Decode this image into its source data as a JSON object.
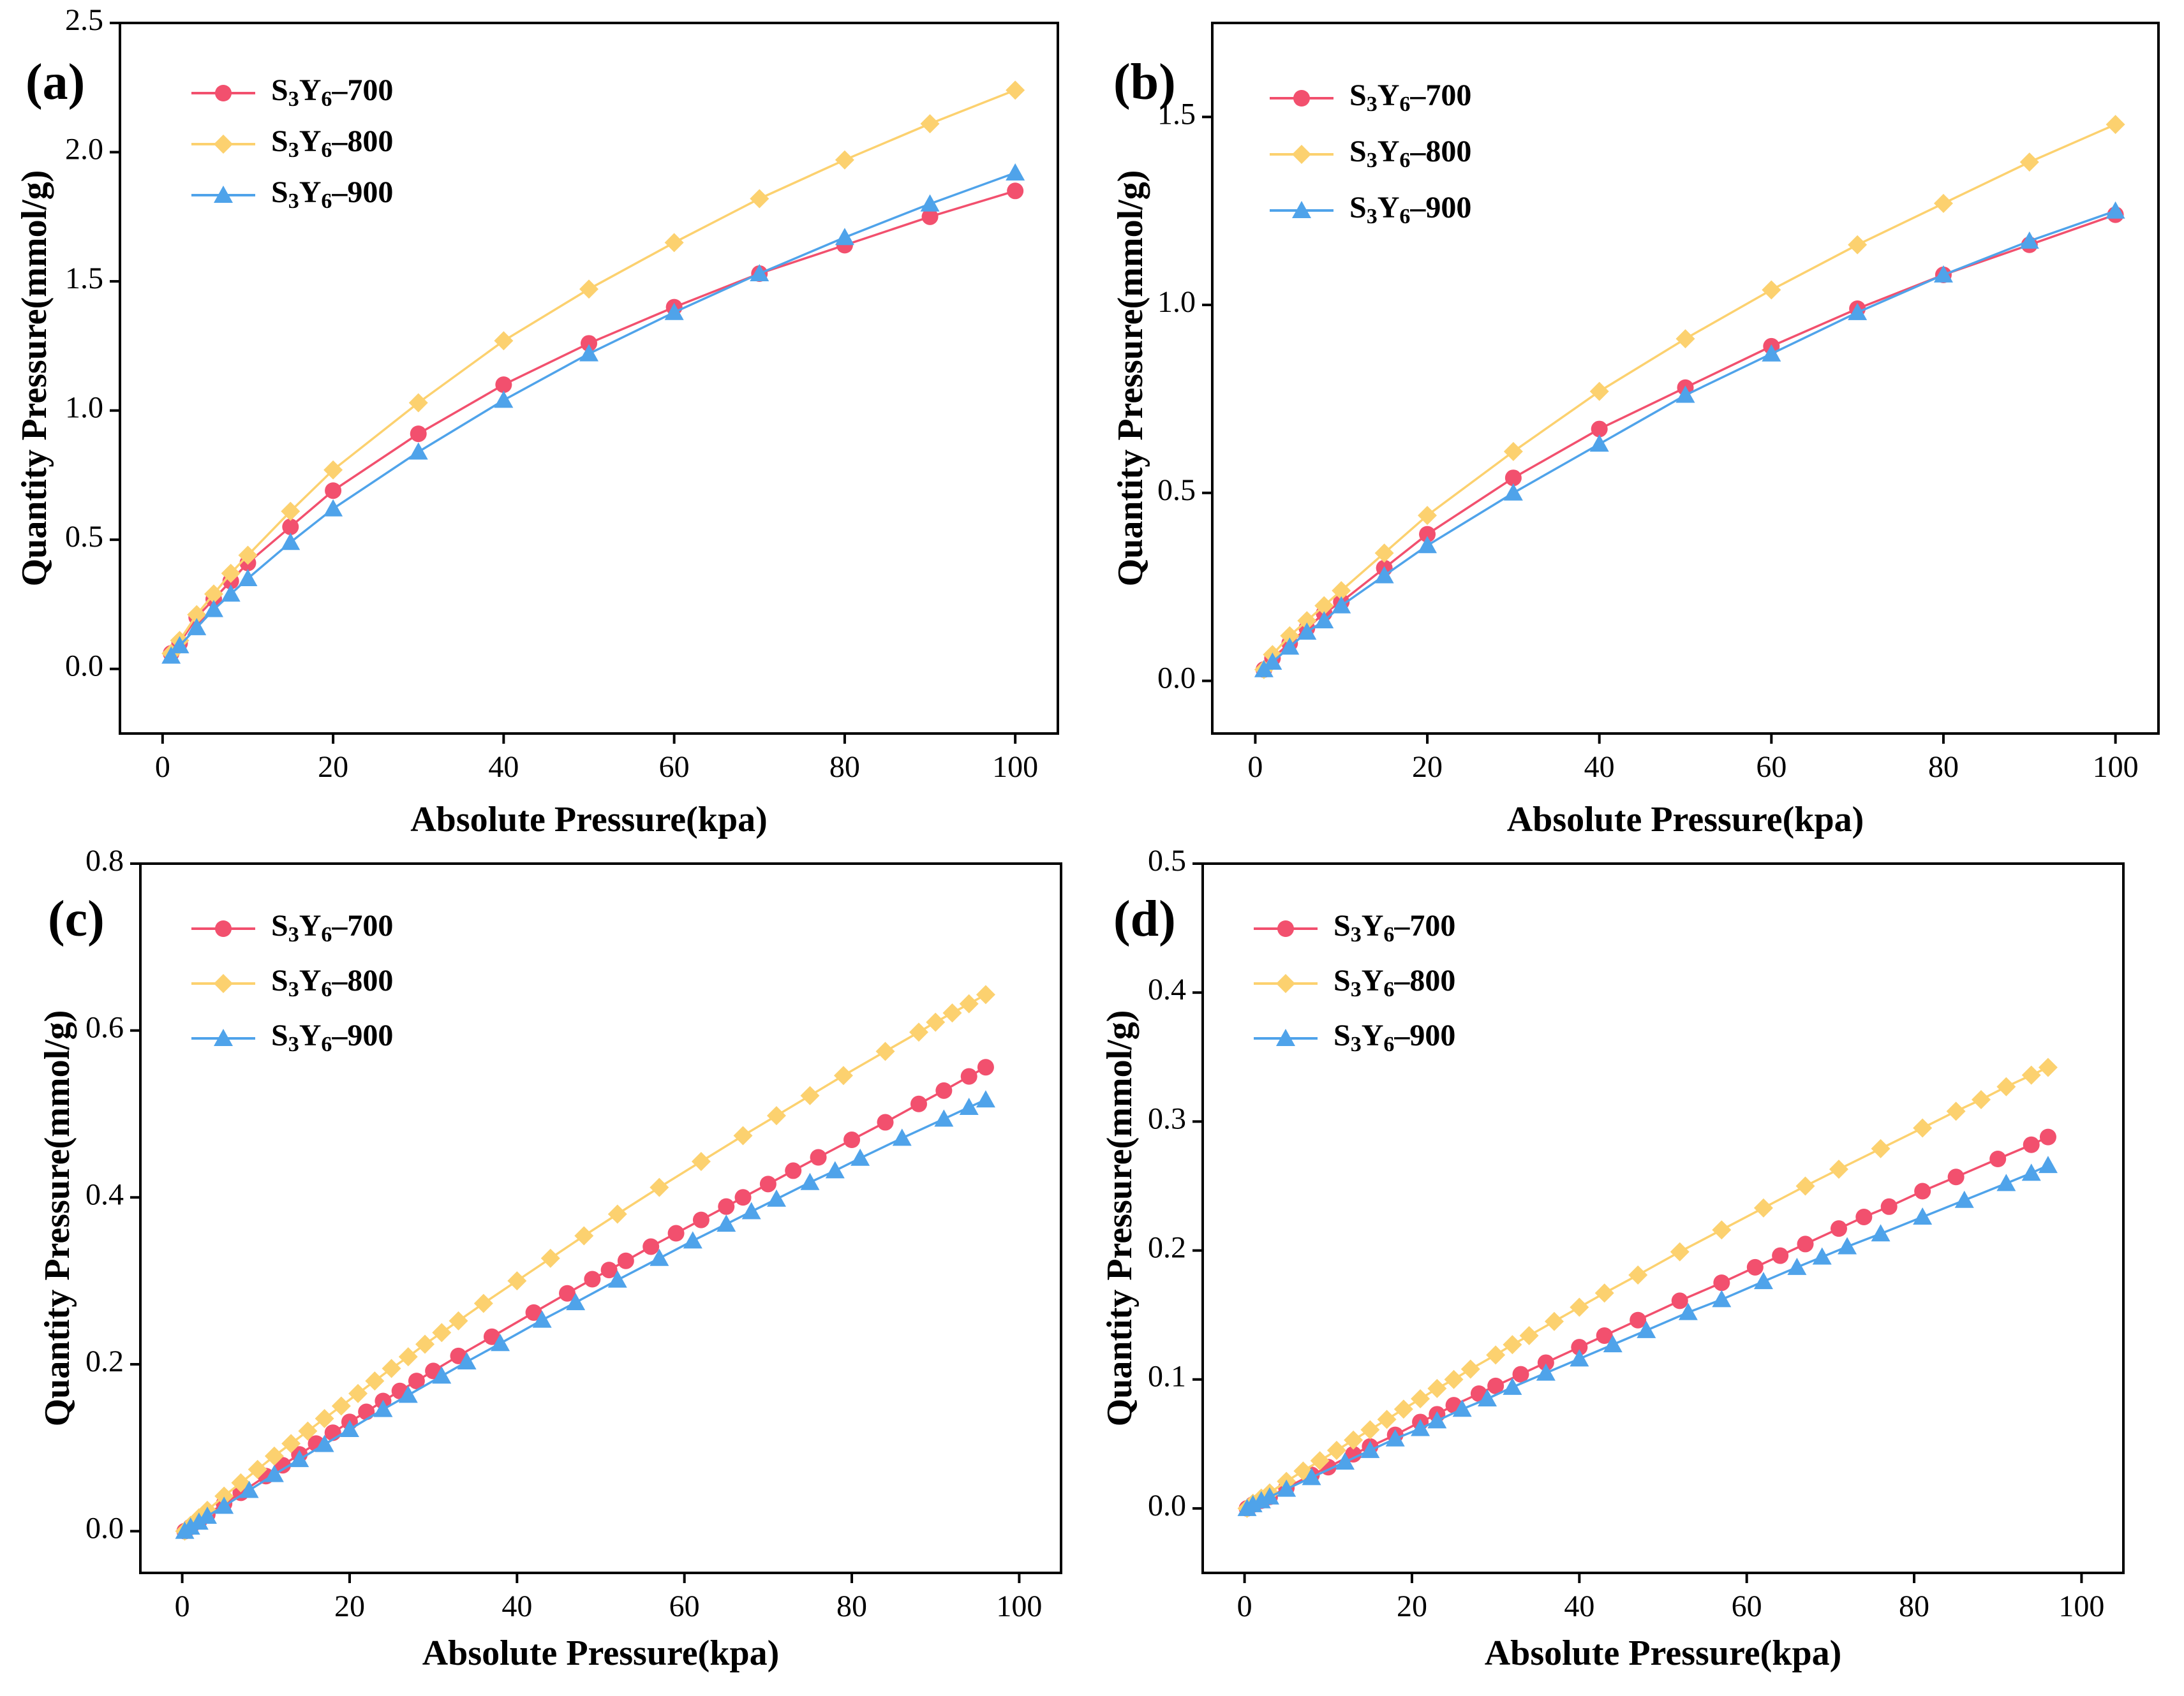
{
  "colors": {
    "S3Y6-700": "#F2506E",
    "S3Y6-800": "#FCD16F",
    "S3Y6-900": "#4FA3EA"
  },
  "chart_data": [
    {
      "label": "(a)",
      "type": "line",
      "xlabel": "Absolute Pressure(kpa)",
      "ylabel": "Quantity Pressure(mmol/g)",
      "xlim": [
        -5,
        105
      ],
      "ylim": [
        -0.25,
        2.5
      ],
      "xticks": [
        0,
        20,
        40,
        60,
        80,
        100
      ],
      "yticks": [
        0.0,
        0.5,
        1.0,
        1.5,
        2.0,
        2.5
      ],
      "xtick_labels": [
        "0",
        "20",
        "40",
        "60",
        "80",
        "100"
      ],
      "ytick_labels": [
        "0.0",
        "0.5",
        "1.0",
        "1.5",
        "2.0",
        "2.5"
      ],
      "legend_position": "top-left",
      "series": [
        {
          "name": "S3Y6-700",
          "legend": {
            "base": "S",
            "sub1": "3",
            "mid": "Y",
            "sub2": "6",
            "suffix": "–700"
          },
          "marker": "circle",
          "x": [
            1,
            2,
            4,
            6,
            8,
            10,
            15,
            20,
            30,
            40,
            50,
            60,
            70,
            80,
            90,
            100
          ],
          "y": [
            0.06,
            0.1,
            0.2,
            0.27,
            0.34,
            0.41,
            0.55,
            0.69,
            0.91,
            1.1,
            1.26,
            1.4,
            1.53,
            1.64,
            1.75,
            1.85
          ]
        },
        {
          "name": "S3Y6-800",
          "legend": {
            "base": "S",
            "sub1": "3",
            "mid": "Y",
            "sub2": "6",
            "suffix": "–800"
          },
          "marker": "diamond",
          "x": [
            1,
            2,
            4,
            6,
            8,
            10,
            15,
            20,
            30,
            40,
            50,
            60,
            70,
            80,
            90,
            100
          ],
          "y": [
            0.06,
            0.11,
            0.21,
            0.29,
            0.37,
            0.44,
            0.61,
            0.77,
            1.03,
            1.27,
            1.47,
            1.65,
            1.82,
            1.97,
            2.11,
            2.24
          ]
        },
        {
          "name": "S3Y6-900",
          "legend": {
            "base": "S",
            "sub1": "3",
            "mid": "Y",
            "sub2": "6",
            "suffix": "–900"
          },
          "marker": "triangle",
          "x": [
            1,
            2,
            4,
            6,
            8,
            10,
            15,
            20,
            30,
            40,
            50,
            60,
            70,
            80,
            90,
            100
          ],
          "y": [
            0.05,
            0.09,
            0.16,
            0.23,
            0.29,
            0.35,
            0.49,
            0.62,
            0.84,
            1.04,
            1.22,
            1.38,
            1.53,
            1.67,
            1.8,
            1.92
          ]
        }
      ]
    },
    {
      "label": "(b)",
      "type": "line",
      "xlabel": "Absolute Pressure(kpa)",
      "ylabel": "Quantity Pressure(mmol/g)",
      "xlim": [
        -5,
        105
      ],
      "ylim": [
        -0.14,
        1.75
      ],
      "xticks": [
        0,
        20,
        40,
        60,
        80,
        100
      ],
      "yticks": [
        0.0,
        0.5,
        1.0,
        1.5
      ],
      "xtick_labels": [
        "0",
        "20",
        "40",
        "60",
        "80",
        "100"
      ],
      "ytick_labels": [
        "0.0",
        "0.5",
        "1.0",
        "1.5"
      ],
      "legend_position": "top-left",
      "series": [
        {
          "name": "S3Y6-700",
          "legend": {
            "base": "S",
            "sub1": "3",
            "mid": "Y",
            "sub2": "6",
            "suffix": "–700"
          },
          "marker": "circle",
          "x": [
            1,
            2,
            4,
            6,
            8,
            10,
            15,
            20,
            30,
            40,
            50,
            60,
            70,
            80,
            90,
            100
          ],
          "y": [
            0.03,
            0.06,
            0.1,
            0.14,
            0.18,
            0.21,
            0.3,
            0.39,
            0.54,
            0.67,
            0.78,
            0.89,
            0.99,
            1.08,
            1.16,
            1.24
          ]
        },
        {
          "name": "S3Y6-800",
          "legend": {
            "base": "S",
            "sub1": "3",
            "mid": "Y",
            "sub2": "6",
            "suffix": "–800"
          },
          "marker": "diamond",
          "x": [
            1,
            2,
            4,
            6,
            8,
            10,
            15,
            20,
            30,
            40,
            50,
            60,
            70,
            80,
            90,
            100
          ],
          "y": [
            0.03,
            0.07,
            0.12,
            0.16,
            0.2,
            0.24,
            0.34,
            0.44,
            0.61,
            0.77,
            0.91,
            1.04,
            1.16,
            1.27,
            1.38,
            1.48
          ]
        },
        {
          "name": "S3Y6-900",
          "legend": {
            "base": "S",
            "sub1": "3",
            "mid": "Y",
            "sub2": "6",
            "suffix": "–900"
          },
          "marker": "triangle",
          "x": [
            1,
            2,
            4,
            6,
            8,
            10,
            15,
            20,
            30,
            40,
            50,
            60,
            70,
            80,
            90,
            100
          ],
          "y": [
            0.03,
            0.05,
            0.09,
            0.13,
            0.16,
            0.2,
            0.28,
            0.36,
            0.5,
            0.63,
            0.76,
            0.87,
            0.98,
            1.08,
            1.17,
            1.25
          ]
        }
      ]
    },
    {
      "label": "(c)",
      "type": "line",
      "xlabel": "Absolute Pressure(kpa)",
      "ylabel": "Quantity Pressure(mmol/g)",
      "xlim": [
        -5,
        105
      ],
      "ylim": [
        -0.05,
        0.8
      ],
      "xticks": [
        0,
        20,
        40,
        60,
        80,
        100
      ],
      "yticks": [
        0.0,
        0.2,
        0.4,
        0.6,
        0.8
      ],
      "xtick_labels": [
        "0",
        "20",
        "40",
        "60",
        "80",
        "100"
      ],
      "ytick_labels": [
        "0.0",
        "0.2",
        "0.4",
        "0.6",
        "0.8"
      ],
      "legend_position": "top-left",
      "series": [
        {
          "name": "S3Y6-700",
          "legend": {
            "base": "S",
            "sub1": "3",
            "mid": "Y",
            "sub2": "6",
            "suffix": "–700"
          },
          "marker": "circle",
          "x": [
            0.3,
            1,
            2,
            3,
            5,
            7,
            10,
            12,
            14,
            16,
            18,
            20,
            22,
            24,
            26,
            28,
            30,
            33,
            37,
            42,
            46,
            49,
            51,
            53,
            56,
            59,
            62,
            65,
            67,
            70,
            73,
            76,
            80,
            84,
            88,
            91,
            94,
            96
          ],
          "y": [
            0.0,
            0.005,
            0.012,
            0.02,
            0.033,
            0.046,
            0.066,
            0.079,
            0.092,
            0.105,
            0.118,
            0.131,
            0.143,
            0.156,
            0.168,
            0.18,
            0.192,
            0.21,
            0.233,
            0.262,
            0.285,
            0.302,
            0.313,
            0.324,
            0.341,
            0.357,
            0.373,
            0.389,
            0.4,
            0.416,
            0.432,
            0.448,
            0.469,
            0.49,
            0.512,
            0.528,
            0.545,
            0.556
          ]
        },
        {
          "name": "S3Y6-800",
          "legend": {
            "base": "S",
            "sub1": "3",
            "mid": "Y",
            "sub2": "6",
            "suffix": "–800"
          },
          "marker": "diamond",
          "x": [
            0.3,
            1,
            2,
            3,
            5,
            7,
            9,
            11,
            13,
            15,
            17,
            19,
            21,
            23,
            25,
            27,
            29,
            31,
            33,
            36,
            40,
            44,
            48,
            52,
            57,
            62,
            67,
            71,
            75,
            79,
            84,
            88,
            90,
            92,
            94,
            96
          ],
          "y": [
            0.0,
            0.007,
            0.016,
            0.025,
            0.042,
            0.058,
            0.074,
            0.09,
            0.105,
            0.12,
            0.135,
            0.15,
            0.165,
            0.18,
            0.195,
            0.209,
            0.224,
            0.238,
            0.252,
            0.273,
            0.3,
            0.327,
            0.354,
            0.38,
            0.412,
            0.443,
            0.474,
            0.498,
            0.522,
            0.546,
            0.575,
            0.598,
            0.61,
            0.621,
            0.632,
            0.643
          ]
        },
        {
          "name": "S3Y6-900",
          "legend": {
            "base": "S",
            "sub1": "3",
            "mid": "Y",
            "sub2": "6",
            "suffix": "–900"
          },
          "marker": "triangle",
          "x": [
            0.3,
            1,
            2,
            3,
            5,
            8,
            11,
            14,
            17,
            20,
            24,
            27,
            31,
            34,
            38,
            43,
            47,
            52,
            57,
            61,
            65,
            68,
            71,
            75,
            78,
            81,
            86,
            91,
            94,
            96
          ],
          "y": [
            0.0,
            0.005,
            0.011,
            0.018,
            0.03,
            0.049,
            0.068,
            0.086,
            0.104,
            0.122,
            0.146,
            0.163,
            0.186,
            0.203,
            0.225,
            0.253,
            0.274,
            0.301,
            0.327,
            0.348,
            0.368,
            0.383,
            0.398,
            0.418,
            0.432,
            0.447,
            0.471,
            0.494,
            0.508,
            0.517
          ]
        }
      ]
    },
    {
      "label": "(d)",
      "type": "line",
      "xlabel": "Absolute Pressure(kpa)",
      "ylabel": "Quantity Pressure(mmol/g)",
      "xlim": [
        -5,
        105
      ],
      "ylim": [
        -0.05,
        0.5
      ],
      "xticks": [
        0,
        20,
        40,
        60,
        80,
        100
      ],
      "yticks": [
        0.0,
        0.1,
        0.2,
        0.3,
        0.4,
        0.5
      ],
      "xtick_labels": [
        "0",
        "20",
        "40",
        "60",
        "80",
        "100"
      ],
      "ytick_labels": [
        "0.0",
        "0.1",
        "0.2",
        "0.3",
        "0.4",
        "0.5"
      ],
      "legend_position": "top-left",
      "series": [
        {
          "name": "S3Y6-700",
          "legend": {
            "base": "S",
            "sub1": "3",
            "mid": "Y",
            "sub2": "6",
            "suffix": "–700"
          },
          "marker": "circle",
          "x": [
            0.3,
            1,
            2,
            3,
            5,
            8,
            10,
            13,
            15,
            18,
            21,
            23,
            25,
            28,
            30,
            33,
            36,
            40,
            43,
            47,
            52,
            57,
            61,
            64,
            67,
            71,
            74,
            77,
            81,
            85,
            90,
            94,
            96
          ],
          "y": [
            0.0,
            0.003,
            0.006,
            0.009,
            0.016,
            0.026,
            0.032,
            0.042,
            0.048,
            0.057,
            0.067,
            0.073,
            0.08,
            0.089,
            0.095,
            0.104,
            0.113,
            0.125,
            0.134,
            0.146,
            0.161,
            0.175,
            0.187,
            0.196,
            0.205,
            0.217,
            0.226,
            0.234,
            0.246,
            0.257,
            0.271,
            0.282,
            0.288
          ]
        },
        {
          "name": "S3Y6-800",
          "legend": {
            "base": "S",
            "sub1": "3",
            "mid": "Y",
            "sub2": "6",
            "suffix": "–800"
          },
          "marker": "diamond",
          "x": [
            0.3,
            1,
            2,
            3,
            5,
            7,
            9,
            11,
            13,
            15,
            17,
            19,
            21,
            23,
            25,
            27,
            30,
            32,
            34,
            37,
            40,
            43,
            47,
            52,
            57,
            62,
            67,
            71,
            76,
            81,
            85,
            88,
            91,
            94,
            96
          ],
          "y": [
            0.0,
            0.004,
            0.008,
            0.012,
            0.021,
            0.029,
            0.037,
            0.045,
            0.053,
            0.061,
            0.069,
            0.077,
            0.085,
            0.093,
            0.1,
            0.108,
            0.119,
            0.127,
            0.134,
            0.145,
            0.156,
            0.167,
            0.181,
            0.199,
            0.216,
            0.233,
            0.25,
            0.263,
            0.279,
            0.295,
            0.308,
            0.317,
            0.327,
            0.336,
            0.342
          ]
        },
        {
          "name": "S3Y6-900",
          "legend": {
            "base": "S",
            "sub1": "3",
            "mid": "Y",
            "sub2": "6",
            "suffix": "–900"
          },
          "marker": "triangle",
          "x": [
            0.3,
            1,
            2,
            3,
            5,
            8,
            12,
            15,
            18,
            21,
            23,
            26,
            29,
            32,
            36,
            40,
            44,
            48,
            53,
            57,
            62,
            66,
            69,
            72,
            76,
            81,
            86,
            91,
            94,
            96
          ],
          "y": [
            0.0,
            0.003,
            0.006,
            0.009,
            0.015,
            0.024,
            0.036,
            0.045,
            0.054,
            0.062,
            0.068,
            0.077,
            0.085,
            0.094,
            0.105,
            0.116,
            0.127,
            0.138,
            0.152,
            0.162,
            0.176,
            0.187,
            0.195,
            0.203,
            0.213,
            0.226,
            0.239,
            0.252,
            0.26,
            0.266
          ]
        }
      ]
    }
  ]
}
